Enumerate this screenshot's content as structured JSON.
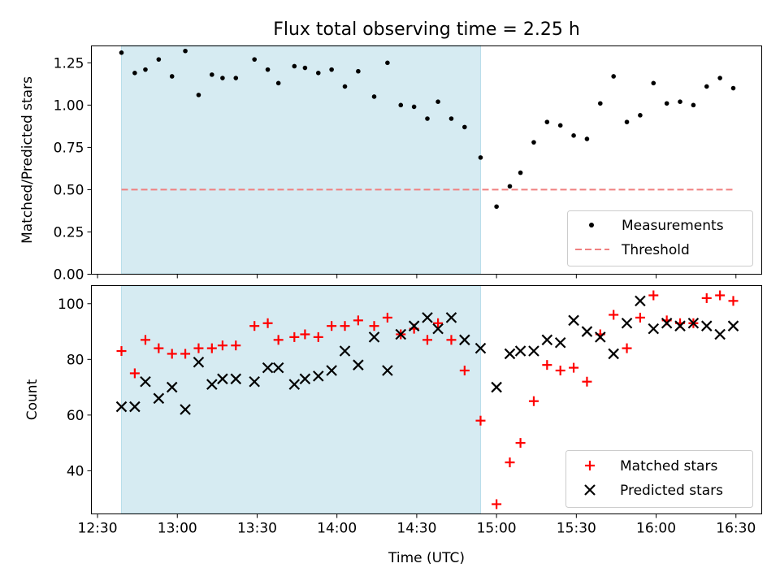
{
  "chart_data": [
    {
      "type": "scatter",
      "title": "Flux total observing time = 2.25 h",
      "ylabel": "Matched/Predicted stars",
      "xlabel": "",
      "x_ticks": [
        "12:30",
        "13:00",
        "13:30",
        "14:00",
        "14:30",
        "15:00",
        "15:30",
        "16:00",
        "16:30"
      ],
      "ylim": [
        0,
        1.35
      ],
      "y_ticks": [
        "0.00",
        "0.25",
        "0.50",
        "0.75",
        "1.00",
        "1.25"
      ],
      "highlight_span": [
        "12:39",
        "14:54"
      ],
      "highlight_color": "#add8e6",
      "legend_position": "lower right",
      "series": [
        {
          "name": "Measurements",
          "marker": "dot",
          "color": "#000000",
          "x": [
            "12:39",
            "12:44",
            "12:48",
            "12:53",
            "12:58",
            "13:03",
            "13:08",
            "13:13",
            "13:17",
            "13:22",
            "13:29",
            "13:34",
            "13:38",
            "13:44",
            "13:48",
            "13:53",
            "13:58",
            "14:03",
            "14:08",
            "14:14",
            "14:19",
            "14:24",
            "14:29",
            "14:34",
            "14:38",
            "14:43",
            "14:48",
            "14:54",
            "15:00",
            "15:05",
            "15:09",
            "15:14",
            "15:19",
            "15:24",
            "15:29",
            "15:34",
            "15:39",
            "15:44",
            "15:49",
            "15:54",
            "15:59",
            "16:04",
            "16:09",
            "16:14",
            "16:19",
            "16:24",
            "16:29"
          ],
          "y": [
            1.31,
            1.19,
            1.21,
            1.27,
            1.17,
            1.32,
            1.06,
            1.18,
            1.16,
            1.16,
            1.27,
            1.21,
            1.13,
            1.23,
            1.22,
            1.19,
            1.21,
            1.11,
            1.2,
            1.05,
            1.25,
            1.0,
            0.99,
            0.92,
            1.02,
            0.92,
            0.87,
            0.69,
            0.4,
            0.52,
            0.6,
            0.78,
            0.9,
            0.88,
            0.82,
            0.8,
            1.01,
            1.17,
            0.9,
            0.94,
            1.13,
            1.01,
            1.02,
            1.0,
            1.11,
            1.16,
            1.1
          ]
        },
        {
          "name": "Threshold",
          "style": "dashed-line",
          "color": "#f08080",
          "x": [
            "12:39",
            "16:29"
          ],
          "y": [
            0.5,
            0.5
          ]
        }
      ]
    },
    {
      "type": "scatter",
      "title": "",
      "ylabel": "Count",
      "xlabel": "Time (UTC)",
      "x_ticks": [
        "12:30",
        "13:00",
        "13:30",
        "14:00",
        "14:30",
        "15:00",
        "15:30",
        "16:00",
        "16:30"
      ],
      "ylim": [
        24.5,
        106.5
      ],
      "y_ticks": [
        "40",
        "60",
        "80",
        "100"
      ],
      "highlight_span": [
        "12:39",
        "14:54"
      ],
      "highlight_color": "#add8e6",
      "legend_position": "lower right",
      "series": [
        {
          "name": "Matched stars",
          "marker": "plus",
          "color": "#ff0000",
          "x": [
            "12:39",
            "12:44",
            "12:48",
            "12:53",
            "12:58",
            "13:03",
            "13:08",
            "13:13",
            "13:17",
            "13:22",
            "13:29",
            "13:34",
            "13:38",
            "13:44",
            "13:48",
            "13:53",
            "13:58",
            "14:03",
            "14:08",
            "14:14",
            "14:19",
            "14:24",
            "14:29",
            "14:34",
            "14:38",
            "14:43",
            "14:48",
            "14:54",
            "15:00",
            "15:05",
            "15:09",
            "15:14",
            "15:19",
            "15:24",
            "15:29",
            "15:34",
            "15:39",
            "15:44",
            "15:49",
            "15:54",
            "15:59",
            "16:04",
            "16:09",
            "16:14",
            "16:19",
            "16:24",
            "16:29"
          ],
          "y": [
            83,
            75,
            87,
            84,
            82,
            82,
            84,
            84,
            85,
            85,
            92,
            93,
            87,
            88,
            89,
            88,
            92,
            92,
            94,
            92,
            95,
            89,
            91,
            87,
            93,
            87,
            76,
            58,
            28,
            43,
            50,
            65,
            78,
            76,
            77,
            72,
            89,
            96,
            84,
            95,
            103,
            94,
            93,
            93,
            102,
            103,
            101
          ]
        },
        {
          "name": "Predicted stars",
          "marker": "x",
          "color": "#000000",
          "x": [
            "12:39",
            "12:44",
            "12:48",
            "12:53",
            "12:58",
            "13:03",
            "13:08",
            "13:13",
            "13:17",
            "13:22",
            "13:29",
            "13:34",
            "13:38",
            "13:44",
            "13:48",
            "13:53",
            "13:58",
            "14:03",
            "14:08",
            "14:14",
            "14:19",
            "14:24",
            "14:29",
            "14:34",
            "14:38",
            "14:43",
            "14:48",
            "14:54",
            "15:00",
            "15:05",
            "15:09",
            "15:14",
            "15:19",
            "15:24",
            "15:29",
            "15:34",
            "15:39",
            "15:44",
            "15:49",
            "15:54",
            "15:59",
            "16:04",
            "16:09",
            "16:14",
            "16:19",
            "16:24",
            "16:29"
          ],
          "y": [
            63,
            63,
            72,
            66,
            70,
            62,
            79,
            71,
            73,
            73,
            72,
            77,
            77,
            71,
            73,
            74,
            76,
            83,
            78,
            88,
            76,
            89,
            92,
            95,
            91,
            95,
            87,
            84,
            70,
            82,
            83,
            83,
            87,
            86,
            94,
            90,
            88,
            82,
            93,
            101,
            91,
            93,
            92,
            93,
            92,
            89,
            92
          ]
        }
      ]
    }
  ]
}
